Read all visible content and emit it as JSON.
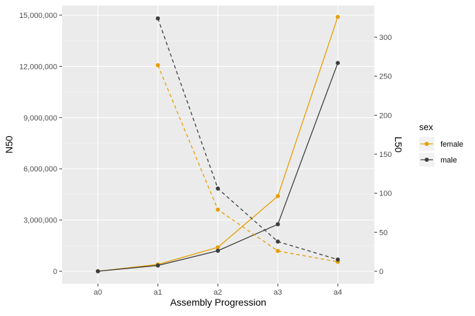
{
  "chart_data": {
    "type": "line",
    "categories": [
      "a0",
      "a1",
      "a2",
      "a3",
      "a4"
    ],
    "xlabel": "Assembly Progression",
    "ylabel_left": "N50",
    "ylabel_right": "L50",
    "ylim_left": [
      0,
      15000000
    ],
    "ylim_right": [
      0,
      325
    ],
    "yticks_left": [
      0,
      3000000,
      6000000,
      9000000,
      12000000,
      15000000
    ],
    "ytick_labels_left": [
      "0",
      "3,000,000",
      "6,000,000",
      "9,000,000",
      "12,000,000",
      "15,000,000"
    ],
    "yticks_right": [
      0,
      50,
      100,
      150,
      200,
      250,
      300
    ],
    "ytick_labels_right": [
      "0",
      "50",
      "100",
      "150",
      "200",
      "250",
      "300"
    ],
    "grid": true,
    "legend": {
      "title": "sex",
      "position": "right",
      "entries": [
        "female",
        "male"
      ]
    },
    "series": [
      {
        "name": "female",
        "metric": "N50",
        "axis": "left",
        "linestyle": "solid",
        "color": "#E69F00",
        "values": [
          0,
          400000,
          1400000,
          4400000,
          14900000
        ]
      },
      {
        "name": "male",
        "metric": "N50",
        "axis": "left",
        "linestyle": "solid",
        "color": "#3D3D3D",
        "values": [
          0,
          340000,
          1200000,
          2750000,
          12200000
        ]
      },
      {
        "name": "female",
        "metric": "L50",
        "axis": "right",
        "linestyle": "dashed",
        "color": "#E69F00",
        "values": [
          null,
          264,
          79,
          26,
          12
        ]
      },
      {
        "name": "male",
        "metric": "L50",
        "axis": "right",
        "linestyle": "dashed",
        "color": "#3D3D3D",
        "values": [
          null,
          324,
          106,
          38,
          15
        ]
      }
    ]
  }
}
